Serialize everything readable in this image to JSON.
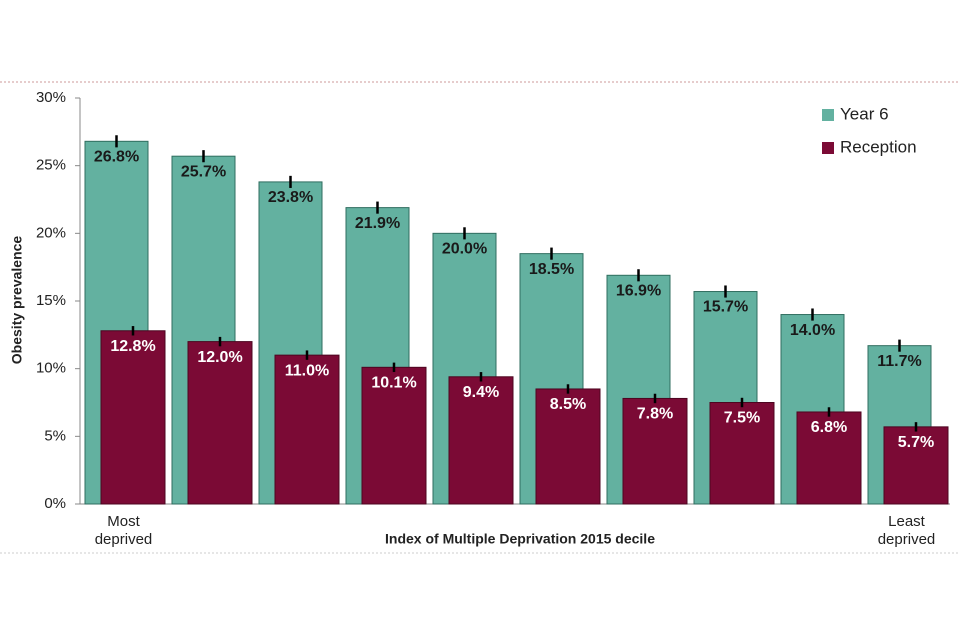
{
  "chart_data": {
    "type": "bar",
    "y_label": "Obesity prevalence",
    "x_label": "Index of Multiple Deprivation 2015 decile",
    "categories": [
      "Most deprived",
      null,
      null,
      null,
      null,
      null,
      null,
      null,
      null,
      "Least deprived"
    ],
    "series": [
      {
        "name": "Year 6",
        "color": "#63b1a0",
        "values": [
          26.8,
          25.7,
          23.8,
          21.9,
          20.0,
          18.5,
          16.9,
          15.7,
          14.0,
          11.7
        ],
        "value_labels": [
          "26.8%",
          "25.7%",
          "23.8%",
          "21.9%",
          "20.0%",
          "18.5%",
          "16.9%",
          "15.7%",
          "14.0%",
          "11.7%"
        ],
        "errors": [
          0.3,
          0.3,
          0.3,
          0.3,
          0.3,
          0.3,
          0.3,
          0.3,
          0.3,
          0.3
        ]
      },
      {
        "name": "Reception",
        "color": "#7b0a35",
        "values": [
          12.8,
          12.0,
          11.0,
          10.1,
          9.4,
          8.5,
          7.8,
          7.5,
          6.8,
          5.7
        ],
        "value_labels": [
          "12.8%",
          "12.0%",
          "11.0%",
          "10.1%",
          "9.4%",
          "8.5%",
          "7.8%",
          "7.5%",
          "6.8%",
          "5.7%"
        ],
        "errors": [
          0.2,
          0.2,
          0.2,
          0.2,
          0.2,
          0.2,
          0.2,
          0.2,
          0.2,
          0.2
        ]
      }
    ],
    "ylim": [
      0,
      30
    ],
    "yticks": [
      {
        "value": 0,
        "label": "0%"
      },
      {
        "value": 5,
        "label": "5%"
      },
      {
        "value": 10,
        "label": "10%"
      },
      {
        "value": 15,
        "label": "15%"
      },
      {
        "value": 20,
        "label": "20%"
      },
      {
        "value": 25,
        "label": "25%"
      },
      {
        "value": 30,
        "label": "30%"
      }
    ],
    "grid": false,
    "legend": "top-right"
  }
}
